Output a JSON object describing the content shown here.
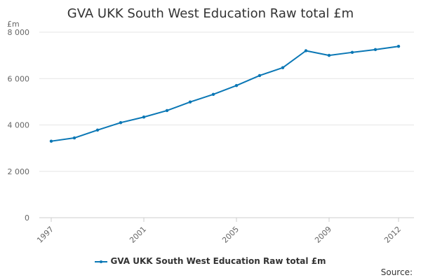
{
  "chart_data": {
    "type": "line",
    "title": "GVA UKK South West Education Raw total £m",
    "ylabel": "£m",
    "xlabel": "",
    "ylim": [
      0,
      8000
    ],
    "yticks": [
      {
        "value": 0,
        "label": "0"
      },
      {
        "value": 2000,
        "label": "2 000"
      },
      {
        "value": 4000,
        "label": "4 000"
      },
      {
        "value": 6000,
        "label": "6 000"
      },
      {
        "value": 8000,
        "label": "8 000"
      }
    ],
    "xticks": [
      "1997",
      "2001",
      "2005",
      "2009",
      "2012"
    ],
    "x": [
      1997,
      1998,
      1999,
      2000,
      2001,
      2002,
      2003,
      2004,
      2005,
      2006,
      2007,
      2008,
      2009,
      2010,
      2011,
      2012
    ],
    "series": [
      {
        "name": "GVA UKK South West Education Raw total £m",
        "color": "#0a77b5",
        "values": [
          3300,
          3440,
          3780,
          4100,
          4340,
          4620,
          4990,
          5320,
          5700,
          6130,
          6470,
          7200,
          7000,
          7130,
          7250,
          7390
        ]
      }
    ],
    "grid": true,
    "legend_position": "bottom",
    "source_label": "Source:"
  }
}
